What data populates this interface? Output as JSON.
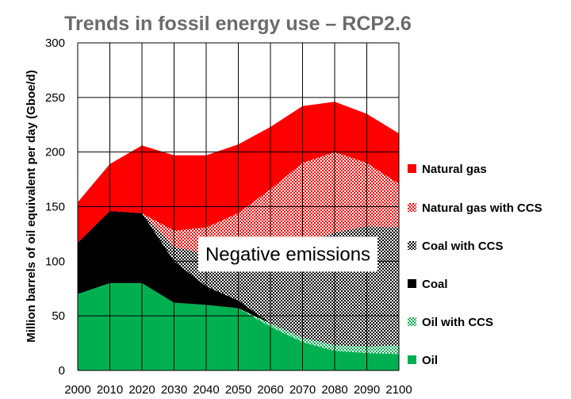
{
  "chart_data": {
    "type": "area",
    "stacked": true,
    "title": "Trends in fossil energy use – RCP2.6",
    "xlabel": "",
    "ylabel": "Million barrels of oil equivalent per day (Gboe/d)",
    "x": [
      2000,
      2010,
      2020,
      2030,
      2040,
      2050,
      2060,
      2070,
      2080,
      2090,
      2100
    ],
    "xlim": [
      2000,
      2100
    ],
    "ylim": [
      0,
      300
    ],
    "xticks": [
      "2000",
      "2010",
      "2020",
      "2030",
      "2040",
      "2050",
      "2060",
      "2070",
      "2080",
      "2090",
      "2100"
    ],
    "yticks": [
      "0",
      "50",
      "100",
      "150",
      "200",
      "250",
      "300"
    ],
    "grid": true,
    "legend": "right",
    "series": [
      {
        "name": "Oil",
        "color": "#00b050",
        "pattern": "solid",
        "values": [
          70,
          80,
          80,
          62,
          60,
          57,
          40,
          26,
          18,
          16,
          15
        ]
      },
      {
        "name": "Oil with CCS",
        "color": "#00b050",
        "pattern": "checker",
        "values": [
          0,
          0,
          0,
          0,
          0,
          0,
          3,
          4,
          5,
          6,
          8
        ]
      },
      {
        "name": "Coal",
        "color": "#000000",
        "pattern": "solid",
        "values": [
          47,
          66,
          64,
          38,
          17,
          7,
          0,
          0,
          0,
          0,
          0
        ]
      },
      {
        "name": "Coal with CCS",
        "color": "#000000",
        "pattern": "checker",
        "values": [
          0,
          0,
          0,
          13,
          30,
          40,
          63,
          88,
          103,
          110,
          108
        ]
      },
      {
        "name": "Natural gas with CCS",
        "color": "#ff0000",
        "pattern": "checker",
        "values": [
          0,
          0,
          0,
          15,
          24,
          40,
          60,
          72,
          74,
          58,
          40
        ]
      },
      {
        "name": "Natural gas",
        "color": "#ff0000",
        "pattern": "solid",
        "values": [
          37,
          43,
          62,
          69,
          66,
          63,
          57,
          52,
          46,
          45,
          46
        ]
      }
    ],
    "legend_order": [
      "Natural gas",
      "Natural gas with CCS",
      "Coal with CCS",
      "Coal",
      "Oil with CCS",
      "Oil"
    ],
    "annotations": [
      {
        "text": "Negative emissions",
        "x": 2060,
        "y": 105
      }
    ]
  }
}
